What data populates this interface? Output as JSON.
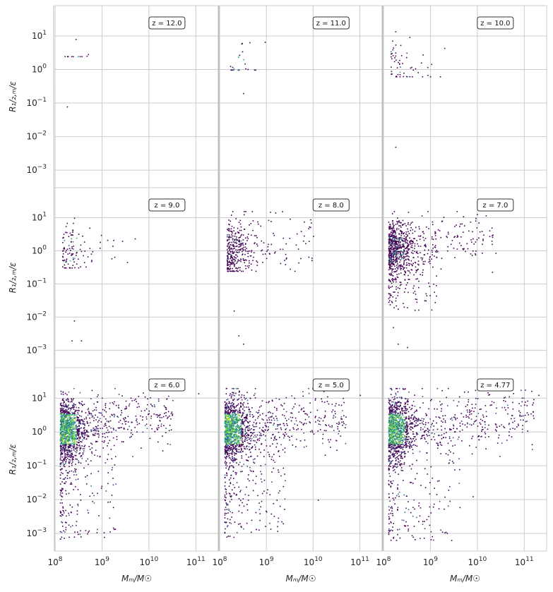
{
  "chart_data": {
    "type": "scatter",
    "layout": "3x3 panels, shared axes",
    "xlabel": "Mₘ/M☉",
    "ylabel": "R₁/₂,ₘ/ε",
    "xscale": "log",
    "yscale": "log",
    "xlim": [
      100000000.0,
      300000000000.0
    ],
    "ylim": [
      0.0003,
      80
    ],
    "x_ticks": [
      "10^8",
      "10^9",
      "10^10",
      "10^11"
    ],
    "y_ticks": [
      "10^-3",
      "10^-2",
      "10^-1",
      "10^0",
      "10^1"
    ],
    "colormap": "viridis",
    "grid": true,
    "panels": [
      {
        "z_label": "z = 12.0",
        "approx_points": 12,
        "main_clump": {
          "logM": [
            8.2,
            8.7
          ],
          "logR": [
            0.4,
            1.3
          ]
        },
        "outliers": [
          [
            8.25,
            -1.1
          ]
        ]
      },
      {
        "z_label": "z = 11.0",
        "approx_points": 22,
        "main_clump": {
          "logM": [
            8.2,
            9.3
          ],
          "logR": [
            0.0,
            1.0
          ]
        },
        "outliers": [
          [
            8.5,
            -0.7
          ]
        ]
      },
      {
        "z_label": "z = 10.0",
        "approx_points": 60,
        "main_clump": {
          "logM": [
            8.15,
            9.5
          ],
          "logR": [
            -0.2,
            1.3
          ]
        },
        "outliers": [
          [
            8.25,
            -2.3
          ]
        ]
      },
      {
        "z_label": "z = 9.0",
        "approx_points": 110,
        "main_clump": {
          "logM": [
            8.15,
            9.8
          ],
          "logR": [
            -0.5,
            1.1
          ]
        },
        "outliers": [
          [
            8.4,
            -2.1
          ],
          [
            8.35,
            -2.7
          ],
          [
            8.55,
            -2.7
          ]
        ]
      },
      {
        "z_label": "z = 8.0",
        "approx_points": 380,
        "main_clump": {
          "logM": [
            8.15,
            10.0
          ],
          "logR": [
            -0.6,
            1.2
          ]
        },
        "outliers": [
          [
            8.3,
            -1.8
          ],
          [
            8.4,
            -2.55
          ],
          [
            8.5,
            -2.8
          ],
          [
            9.6,
            -0.6
          ]
        ]
      },
      {
        "z_label": "z = 7.0",
        "approx_points": 900,
        "main_clump": {
          "logM": [
            8.1,
            10.4
          ],
          "logR": [
            -1.8,
            1.2
          ]
        },
        "outliers": [
          [
            8.3,
            -2.8
          ],
          [
            8.5,
            -2.9
          ],
          [
            8.2,
            -2.3
          ]
        ]
      },
      {
        "z_label": "z = 6.0",
        "approx_points": 2600,
        "main_clump": {
          "logM": [
            8.1,
            10.5
          ],
          "logR": [
            -3.2,
            1.3
          ]
        },
        "outliers": [
          [
            11.05,
            1.15
          ],
          [
            9.2,
            -1.1
          ]
        ]
      },
      {
        "z_label": "z = 5.0",
        "approx_points": 4200,
        "main_clump": {
          "logM": [
            8.1,
            10.7
          ],
          "logR": [
            -3.1,
            1.3
          ]
        },
        "outliers": [
          [
            11.0,
            1.1
          ],
          [
            10.1,
            -2.0
          ]
        ]
      },
      {
        "z_label": "z = 4.77",
        "approx_points": 5200,
        "main_clump": {
          "logM": [
            8.1,
            11.2
          ],
          "logR": [
            -3.2,
            1.3
          ]
        },
        "outliers": [
          [
            11.3,
            1.1
          ],
          [
            9.9,
            -1.9
          ]
        ]
      }
    ]
  }
}
